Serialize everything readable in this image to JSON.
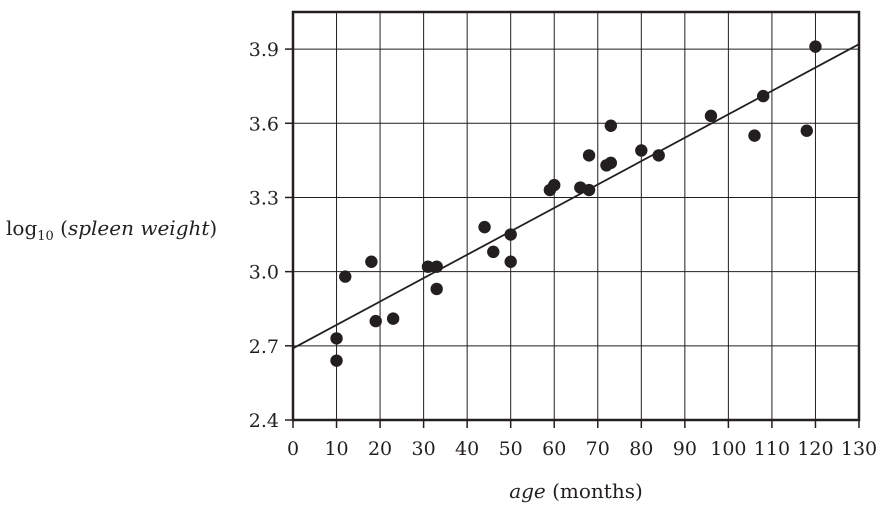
{
  "chart_data": {
    "type": "scatter",
    "title": "",
    "xlabel_italic": "age",
    "xlabel_rest": "(months)",
    "ylabel_prefix": "log",
    "ylabel_sub": "10",
    "ylabel_open": "(",
    "ylabel_italic": "spleen weight",
    "ylabel_close": ")",
    "xlim": [
      0,
      130
    ],
    "ylim": [
      2.4,
      4.05
    ],
    "x_ticks": [
      0,
      10,
      20,
      30,
      40,
      50,
      60,
      70,
      80,
      90,
      100,
      110,
      120,
      130
    ],
    "y_ticks": [
      2.4,
      2.7,
      3.0,
      3.3,
      3.6,
      3.9
    ],
    "y_tick_labels": [
      "2.4",
      "2.7",
      "3.0",
      "3.3",
      "3.6",
      "3.9"
    ],
    "grid": true,
    "points": [
      {
        "x": 10,
        "y": 2.73
      },
      {
        "x": 10,
        "y": 2.64
      },
      {
        "x": 12,
        "y": 2.98
      },
      {
        "x": 18,
        "y": 3.04
      },
      {
        "x": 19,
        "y": 2.8
      },
      {
        "x": 23,
        "y": 2.81
      },
      {
        "x": 31,
        "y": 3.02
      },
      {
        "x": 33,
        "y": 3.02
      },
      {
        "x": 33,
        "y": 2.93
      },
      {
        "x": 44,
        "y": 3.18
      },
      {
        "x": 46,
        "y": 3.08
      },
      {
        "x": 50,
        "y": 3.15
      },
      {
        "x": 50,
        "y": 3.04
      },
      {
        "x": 59,
        "y": 3.33
      },
      {
        "x": 60,
        "y": 3.35
      },
      {
        "x": 66,
        "y": 3.34
      },
      {
        "x": 68,
        "y": 3.33
      },
      {
        "x": 68,
        "y": 3.47
      },
      {
        "x": 72,
        "y": 3.43
      },
      {
        "x": 73,
        "y": 3.44
      },
      {
        "x": 73,
        "y": 3.59
      },
      {
        "x": 80,
        "y": 3.49
      },
      {
        "x": 84,
        "y": 3.47
      },
      {
        "x": 96,
        "y": 3.63
      },
      {
        "x": 106,
        "y": 3.55
      },
      {
        "x": 108,
        "y": 3.71
      },
      {
        "x": 118,
        "y": 3.57
      },
      {
        "x": 120,
        "y": 3.91
      }
    ],
    "regression_line": {
      "x": [
        0,
        130
      ],
      "y": [
        2.69,
        3.92
      ]
    },
    "colors": {
      "ink": "#231f20",
      "grid": "#231f20"
    }
  }
}
